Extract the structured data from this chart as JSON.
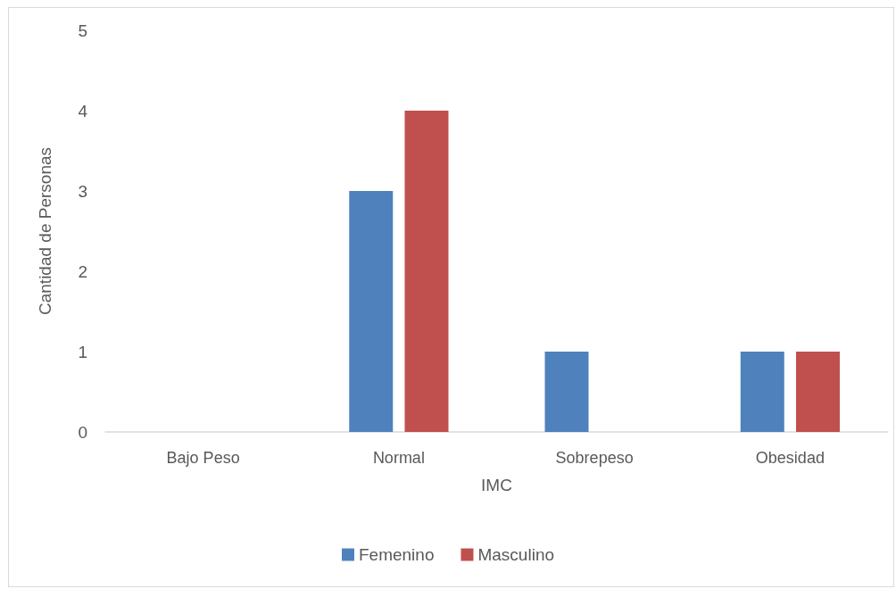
{
  "chart_data": {
    "type": "bar",
    "xlabel": "IMC",
    "ylabel": "Cantidad de Personas",
    "categories": [
      "Bajo Peso",
      "Normal",
      "Sobrepeso",
      "Obesidad"
    ],
    "series": [
      {
        "name": "Femenino",
        "color": "#4f81bd",
        "values": [
          0,
          3,
          1,
          1
        ]
      },
      {
        "name": "Masculino",
        "color": "#c0504d",
        "values": [
          0,
          4,
          0,
          1
        ]
      }
    ],
    "ylim": [
      0,
      5
    ],
    "yticks": [
      0,
      1,
      2,
      3,
      4,
      5
    ],
    "grid": false,
    "legend": "bottom"
  }
}
